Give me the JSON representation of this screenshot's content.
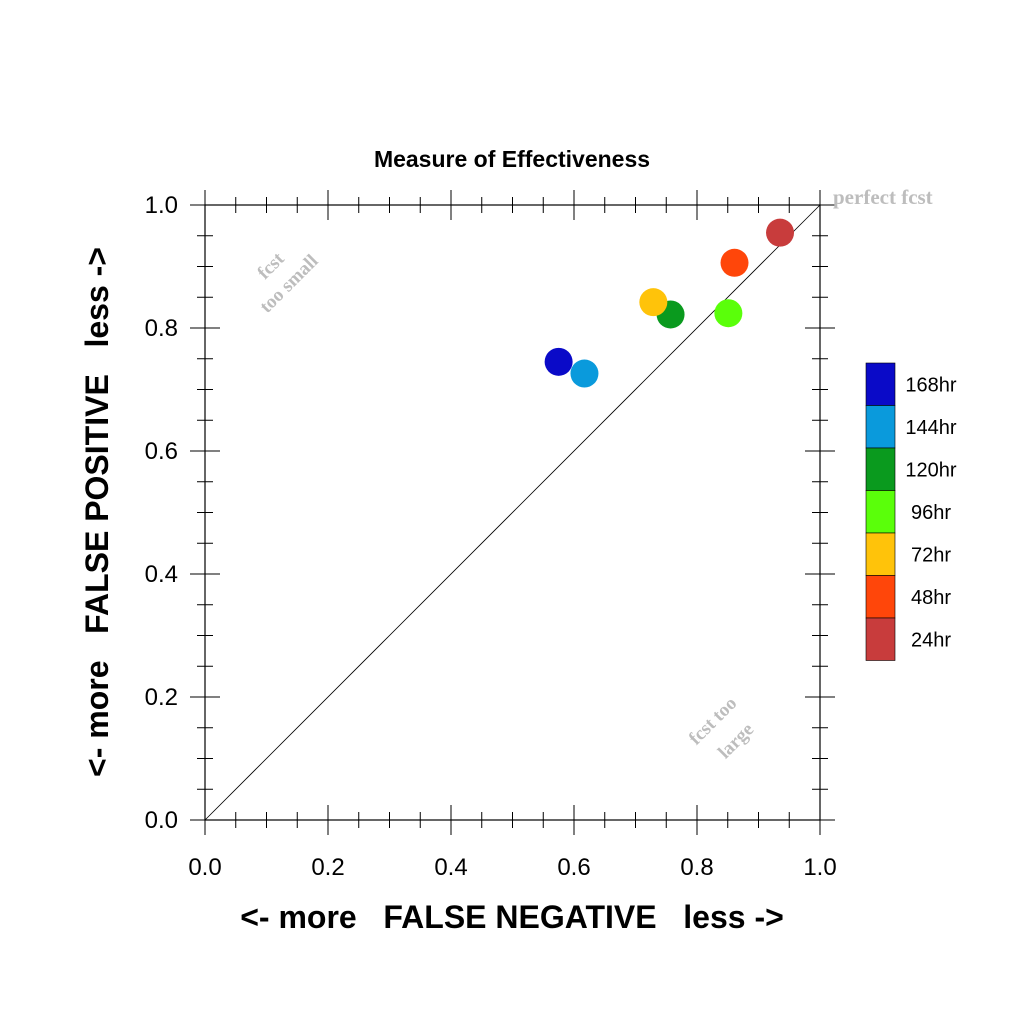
{
  "chart_data": {
    "type": "scatter",
    "title": "Measure of Effectiveness",
    "xlabel": "<- more   FALSE NEGATIVE   less ->",
    "ylabel": "<- more   FALSE POSITIVE   less ->",
    "xlim": [
      0,
      1
    ],
    "ylim": [
      0,
      1
    ],
    "x_ticks": [
      "0.0",
      "0.2",
      "0.4",
      "0.6",
      "0.8",
      "1.0"
    ],
    "y_ticks": [
      "0.0",
      "0.2",
      "0.4",
      "0.6",
      "0.8",
      "1.0"
    ],
    "grid": false,
    "legend_position": "right",
    "reference_line": {
      "from": [
        0,
        0
      ],
      "to": [
        1,
        1
      ]
    },
    "annotations": {
      "perfect": "perfect fcst",
      "too_small": [
        "fcst",
        "too small"
      ],
      "too_large": [
        "fcst too",
        "large"
      ]
    },
    "series": [
      {
        "name": "168hr",
        "color": "#0a0ac8",
        "x": 0.575,
        "y": 0.745
      },
      {
        "name": "144hr",
        "color": "#0a9adc",
        "x": 0.617,
        "y": 0.726
      },
      {
        "name": "120hr",
        "color": "#0a9a1e",
        "x": 0.757,
        "y": 0.822
      },
      {
        "name": "96hr",
        "color": "#5aff0a",
        "x": 0.851,
        "y": 0.824
      },
      {
        "name": "72hr",
        "color": "#ffc30a",
        "x": 0.729,
        "y": 0.842
      },
      {
        "name": "48hr",
        "color": "#ff460a",
        "x": 0.861,
        "y": 0.906
      },
      {
        "name": "24hr",
        "color": "#c83c3c",
        "x": 0.935,
        "y": 0.955
      }
    ]
  }
}
